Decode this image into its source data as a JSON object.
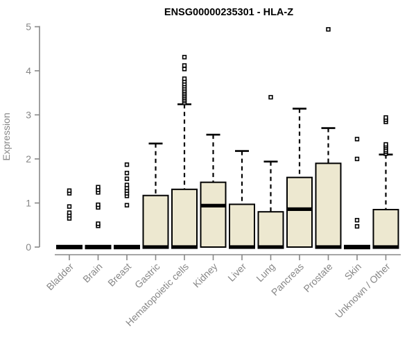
{
  "chart_data": {
    "type": "boxplot",
    "title": "ENSG00000235301 - HLA-Z",
    "ylabel": "Expression",
    "xlabel": "",
    "ylim": [
      0,
      5
    ],
    "yticks": [
      0,
      1,
      2,
      3,
      4,
      5
    ],
    "grid": false,
    "legend": "none",
    "colors": {
      "box_fill": "#EDE8D0",
      "box_stroke": "#000000",
      "median_color": "#000000",
      "whisker_color": "#000000",
      "outlier_stroke": "#000000",
      "outlier_fill": "#ffffff",
      "axis_color": "#878787",
      "title_color": "#000000",
      "background": "#ffffff"
    },
    "boxes": [
      {
        "category": "Bladder",
        "q1": 0,
        "median": 0,
        "q3": 0,
        "whisker_low": 0,
        "whisker_high": 0,
        "outliers": [
          0.65,
          0.72,
          0.78,
          0.92,
          1.22,
          1.28
        ]
      },
      {
        "category": "Brain",
        "q1": 0,
        "median": 0,
        "q3": 0,
        "whisker_low": 0,
        "whisker_high": 0,
        "outliers": [
          0.48,
          0.53,
          0.9,
          0.96,
          1.24,
          1.3,
          1.36
        ]
      },
      {
        "category": "Breast",
        "q1": 0,
        "median": 0,
        "q3": 0,
        "whisker_low": 0,
        "whisker_high": 0,
        "outliers": [
          0.95,
          1.16,
          1.22,
          1.28,
          1.34,
          1.41,
          1.55,
          1.68,
          1.87
        ]
      },
      {
        "category": "Gastric",
        "q1": 0,
        "median": 0,
        "q3": 1.17,
        "whisker_low": 0,
        "whisker_high": 2.35,
        "outliers": []
      },
      {
        "category": "Hematopoietic cells",
        "q1": 0,
        "median": 0,
        "q3": 1.31,
        "whisker_low": 0,
        "whisker_high": 3.24,
        "outliers": [
          3.27,
          3.31,
          3.35,
          3.39,
          3.43,
          3.47,
          3.51,
          3.55,
          3.6,
          3.65,
          3.7,
          3.76,
          3.82,
          4.04,
          4.12,
          4.31
        ]
      },
      {
        "category": "Kidney",
        "q1": 0,
        "median": 0.94,
        "q3": 1.47,
        "whisker_low": 0,
        "whisker_high": 2.55,
        "outliers": []
      },
      {
        "category": "Liver",
        "q1": 0,
        "median": 0,
        "q3": 0.97,
        "whisker_low": 0,
        "whisker_high": 2.18,
        "outliers": []
      },
      {
        "category": "Lung",
        "q1": 0,
        "median": 0,
        "q3": 0.8,
        "whisker_low": 0,
        "whisker_high": 1.94,
        "outliers": [
          3.4
        ]
      },
      {
        "category": "Pancreas",
        "q1": 0,
        "median": 0.86,
        "q3": 1.58,
        "whisker_low": 0,
        "whisker_high": 3.14,
        "outliers": []
      },
      {
        "category": "Prostate",
        "q1": 0,
        "median": 0,
        "q3": 1.9,
        "whisker_low": 0,
        "whisker_high": 2.7,
        "outliers": [
          4.94
        ]
      },
      {
        "category": "Skin",
        "q1": 0,
        "median": 0,
        "q3": 0,
        "whisker_low": 0,
        "whisker_high": 0,
        "outliers": [
          0.47,
          0.61,
          2.0,
          2.45
        ]
      },
      {
        "category": "Unknown / Other",
        "q1": 0,
        "median": 0,
        "q3": 0.85,
        "whisker_low": 0,
        "whisker_high": 2.1,
        "outliers": [
          2.12,
          2.16,
          2.2,
          2.25,
          2.29,
          2.33,
          2.84,
          2.89,
          2.94
        ]
      }
    ]
  }
}
